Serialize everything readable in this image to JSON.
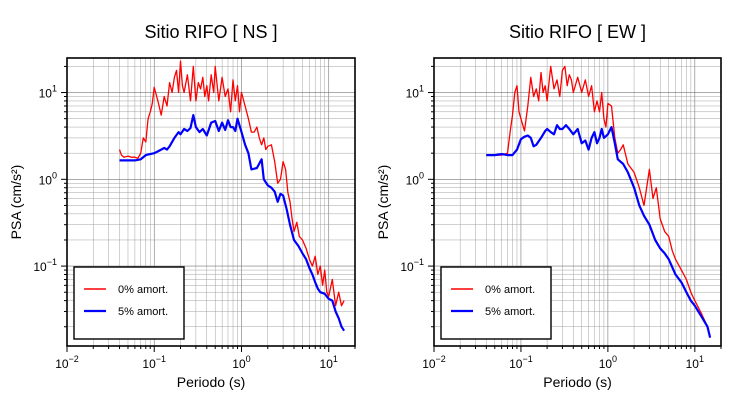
{
  "chart_data": [
    {
      "type": "line",
      "title": "Sitio RIFO [ NS ]",
      "xlabel": "Periodo (s)",
      "ylabel": "PSA (cm/s²)",
      "xscale": "log",
      "yscale": "log",
      "xlim": [
        0.01,
        20
      ],
      "ylim": [
        0.012,
        25
      ],
      "x_ticks": [
        {
          "value": 0.01,
          "base": "10",
          "exp": "−2"
        },
        {
          "value": 0.1,
          "base": "10",
          "exp": "−1"
        },
        {
          "value": 1,
          "base": "10",
          "exp": "0"
        },
        {
          "value": 10,
          "base": "10",
          "exp": "1"
        }
      ],
      "y_ticks": [
        {
          "value": 0.1,
          "base": "10",
          "exp": "−1"
        },
        {
          "value": 1,
          "base": "10",
          "exp": "0"
        },
        {
          "value": 10,
          "base": "10",
          "exp": "1"
        }
      ],
      "grid": true,
      "legend_position": "bottom-left",
      "series": [
        {
          "name": "0% amort.",
          "color": "#ff0000",
          "x": [
            0.04,
            0.042,
            0.045,
            0.05,
            0.055,
            0.06,
            0.065,
            0.07,
            0.075,
            0.08,
            0.085,
            0.09,
            0.095,
            0.1,
            0.11,
            0.12,
            0.13,
            0.14,
            0.15,
            0.16,
            0.17,
            0.18,
            0.19,
            0.2,
            0.21,
            0.22,
            0.24,
            0.26,
            0.28,
            0.3,
            0.32,
            0.34,
            0.36,
            0.38,
            0.4,
            0.42,
            0.45,
            0.48,
            0.5,
            0.55,
            0.6,
            0.65,
            0.7,
            0.75,
            0.8,
            0.85,
            0.9,
            0.95,
            1.0,
            1.1,
            1.2,
            1.3,
            1.4,
            1.5,
            1.6,
            1.7,
            1.8,
            1.9,
            2.0,
            2.2,
            2.4,
            2.6,
            2.8,
            3.0,
            3.2,
            3.4,
            3.6,
            3.8,
            4.0,
            4.3,
            4.6,
            5.0,
            5.5,
            6.0,
            6.5,
            7.0,
            7.5,
            8.0,
            8.5,
            9.0,
            9.5,
            10.0,
            11.0,
            12.0,
            13.0,
            14.0,
            15.0
          ],
          "values": [
            2.2,
            1.9,
            1.8,
            1.85,
            1.8,
            1.8,
            1.75,
            2.0,
            3.0,
            2.7,
            5.0,
            6.0,
            7.5,
            11.5,
            8.0,
            5.5,
            9.0,
            7.0,
            13.0,
            10.0,
            15.0,
            18.0,
            10.0,
            23.0,
            12.0,
            10.0,
            16.0,
            8.0,
            20.0,
            8.0,
            13.0,
            11.0,
            15.0,
            9.0,
            12.0,
            8.0,
            16.0,
            10.0,
            20.0,
            8.0,
            15.0,
            9.0,
            11.0,
            6.0,
            14.0,
            8.0,
            12.0,
            6.0,
            10.0,
            7.0,
            5.0,
            3.5,
            3.5,
            4.0,
            3.0,
            2.5,
            3.0,
            2.2,
            2.4,
            2.5,
            1.6,
            0.9,
            1.0,
            1.6,
            1.3,
            0.7,
            0.55,
            0.35,
            0.25,
            0.32,
            0.22,
            0.2,
            0.16,
            0.12,
            0.1,
            0.13,
            0.08,
            0.1,
            0.06,
            0.09,
            0.05,
            0.045,
            0.07,
            0.035,
            0.05,
            0.035,
            0.04
          ]
        },
        {
          "name": "5% amort.",
          "color": "#0000ff",
          "x": [
            0.04,
            0.045,
            0.05,
            0.06,
            0.07,
            0.08,
            0.09,
            0.1,
            0.11,
            0.12,
            0.13,
            0.14,
            0.15,
            0.17,
            0.19,
            0.2,
            0.22,
            0.24,
            0.26,
            0.28,
            0.3,
            0.33,
            0.36,
            0.4,
            0.45,
            0.5,
            0.55,
            0.6,
            0.65,
            0.7,
            0.75,
            0.8,
            0.85,
            0.9,
            1.0,
            1.1,
            1.2,
            1.3,
            1.5,
            1.7,
            1.8,
            2.0,
            2.2,
            2.4,
            2.6,
            2.8,
            3.0,
            3.3,
            3.6,
            4.0,
            4.5,
            5.0,
            5.5,
            6.0,
            6.5,
            7.0,
            7.5,
            8.0,
            9.0,
            10.0,
            11.0,
            12.0,
            13.0,
            14.0,
            15.0
          ],
          "values": [
            1.65,
            1.65,
            1.65,
            1.65,
            1.7,
            1.9,
            1.95,
            2.0,
            2.1,
            2.2,
            2.3,
            2.2,
            2.4,
            3.0,
            3.5,
            3.3,
            3.8,
            3.6,
            3.9,
            5.5,
            4.0,
            3.5,
            3.8,
            3.2,
            4.5,
            4.7,
            3.6,
            4.5,
            3.7,
            4.8,
            4.0,
            4.0,
            3.6,
            5.0,
            3.5,
            2.5,
            2.0,
            1.3,
            1.35,
            1.7,
            1.0,
            0.85,
            0.8,
            0.72,
            0.55,
            0.68,
            0.65,
            0.45,
            0.3,
            0.2,
            0.17,
            0.14,
            0.12,
            0.095,
            0.08,
            0.065,
            0.055,
            0.05,
            0.048,
            0.042,
            0.04,
            0.03,
            0.025,
            0.02,
            0.018
          ]
        }
      ]
    },
    {
      "type": "line",
      "title": "Sitio RIFO [ EW ]",
      "xlabel": "Periodo (s)",
      "ylabel": "PSA (cm/s²)",
      "xscale": "log",
      "yscale": "log",
      "xlim": [
        0.01,
        20
      ],
      "ylim": [
        0.012,
        25
      ],
      "x_ticks": [
        {
          "value": 0.01,
          "base": "10",
          "exp": "−2"
        },
        {
          "value": 0.1,
          "base": "10",
          "exp": "−1"
        },
        {
          "value": 1,
          "base": "10",
          "exp": "0"
        },
        {
          "value": 10,
          "base": "10",
          "exp": "1"
        }
      ],
      "y_ticks": [
        {
          "value": 0.1,
          "base": "10",
          "exp": "−1"
        },
        {
          "value": 1,
          "base": "10",
          "exp": "0"
        },
        {
          "value": 10,
          "base": "10",
          "exp": "1"
        }
      ],
      "grid": true,
      "legend_position": "bottom-left",
      "series": [
        {
          "name": "0% amort.",
          "color": "#ff0000",
          "x": [
            0.04,
            0.05,
            0.06,
            0.07,
            0.075,
            0.08,
            0.085,
            0.09,
            0.095,
            0.1,
            0.11,
            0.12,
            0.13,
            0.14,
            0.15,
            0.16,
            0.17,
            0.18,
            0.19,
            0.2,
            0.22,
            0.24,
            0.26,
            0.28,
            0.3,
            0.32,
            0.34,
            0.36,
            0.38,
            0.4,
            0.45,
            0.5,
            0.55,
            0.6,
            0.65,
            0.7,
            0.75,
            0.8,
            0.85,
            0.9,
            0.95,
            1.0,
            1.1,
            1.2,
            1.3,
            1.4,
            1.5,
            1.7,
            2.0,
            2.3,
            2.6,
            3.0,
            3.3,
            3.6,
            4.0,
            4.5,
            5.0,
            5.5,
            6.0,
            7.0,
            8.0,
            9.0,
            10.0,
            12.0,
            14.0,
            15.0
          ],
          "values": [
            1.9,
            1.9,
            1.9,
            2.0,
            3.5,
            5.5,
            10.0,
            12.0,
            6.0,
            5.0,
            3.6,
            7.0,
            15.0,
            9.0,
            11.0,
            8.0,
            17.0,
            10.0,
            12.0,
            8.0,
            20.0,
            11.0,
            14.0,
            9.0,
            18.0,
            20.0,
            12.0,
            16.0,
            14.0,
            10.0,
            15.0,
            10.0,
            14.0,
            9.0,
            12.0,
            6.0,
            8.0,
            6.0,
            10.0,
            5.0,
            4.0,
            7.5,
            7.0,
            3.0,
            2.0,
            2.2,
            2.5,
            1.5,
            1.2,
            0.8,
            0.5,
            1.3,
            0.6,
            0.8,
            0.35,
            0.25,
            0.22,
            0.15,
            0.12,
            0.09,
            0.07,
            0.05,
            0.04,
            0.028,
            0.02,
            0.015
          ]
        },
        {
          "name": "5% amort.",
          "color": "#0000ff",
          "x": [
            0.04,
            0.05,
            0.06,
            0.07,
            0.08,
            0.09,
            0.1,
            0.11,
            0.12,
            0.13,
            0.14,
            0.15,
            0.17,
            0.19,
            0.2,
            0.22,
            0.24,
            0.26,
            0.28,
            0.3,
            0.33,
            0.36,
            0.4,
            0.45,
            0.5,
            0.55,
            0.6,
            0.65,
            0.7,
            0.75,
            0.8,
            0.85,
            0.9,
            1.0,
            1.1,
            1.2,
            1.3,
            1.5,
            1.7,
            2.0,
            2.3,
            2.6,
            3.0,
            3.5,
            4.0,
            4.5,
            5.0,
            6.0,
            7.0,
            8.0,
            9.0,
            10.0,
            12.0,
            14.0,
            15.0
          ],
          "values": [
            1.9,
            1.9,
            1.95,
            1.9,
            1.9,
            2.2,
            2.9,
            3.1,
            3.2,
            3.0,
            2.4,
            2.5,
            3.0,
            3.6,
            3.8,
            3.5,
            3.3,
            4.2,
            3.8,
            3.8,
            4.2,
            3.8,
            3.3,
            3.8,
            2.6,
            2.8,
            2.2,
            3.0,
            3.5,
            2.6,
            3.0,
            3.8,
            3.0,
            3.3,
            4.0,
            2.6,
            1.7,
            1.5,
            1.2,
            0.8,
            0.5,
            0.38,
            0.3,
            0.2,
            0.16,
            0.14,
            0.12,
            0.08,
            0.065,
            0.05,
            0.04,
            0.035,
            0.026,
            0.02,
            0.015
          ]
        }
      ]
    }
  ]
}
